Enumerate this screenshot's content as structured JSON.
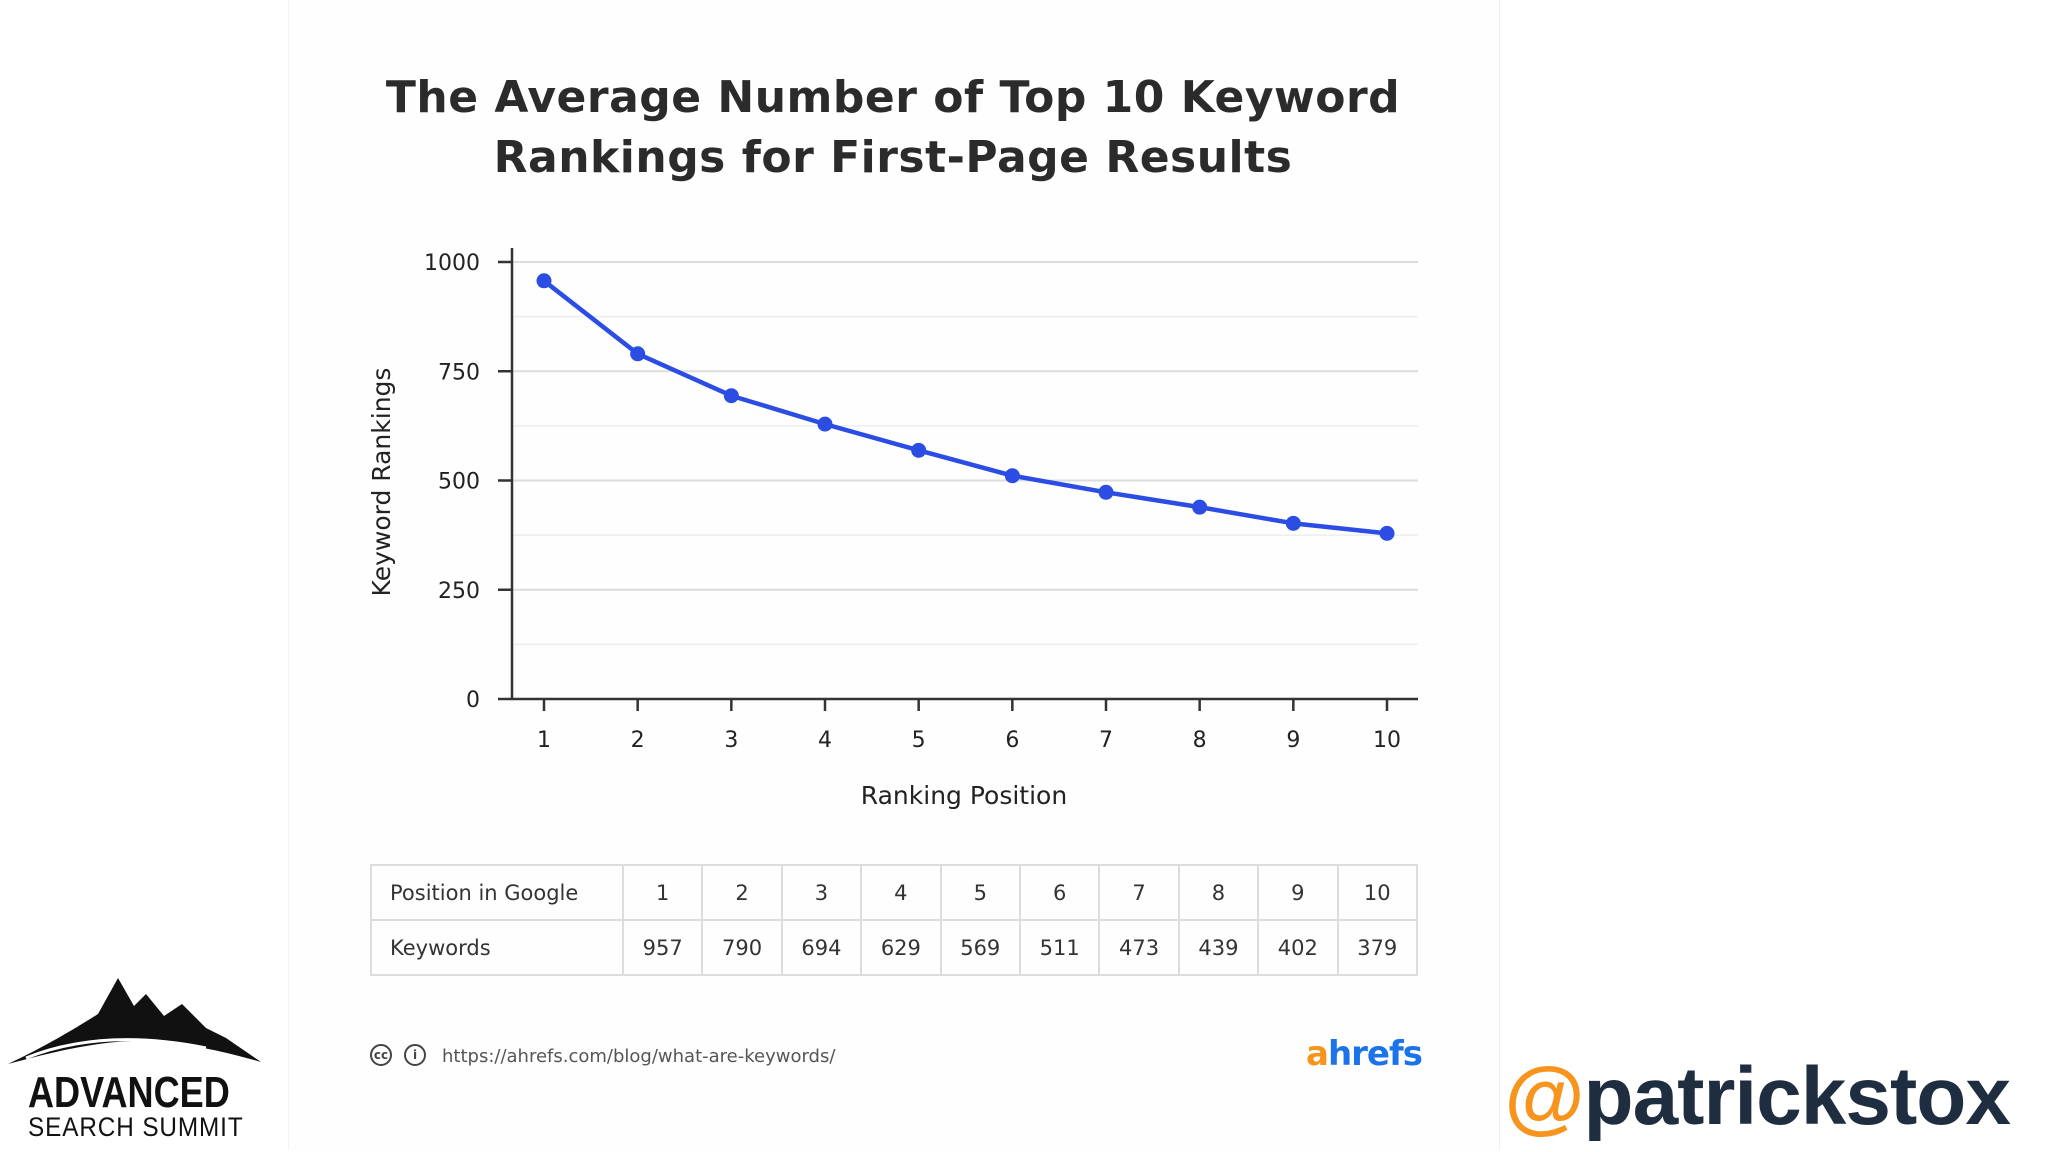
{
  "chart_data": {
    "type": "line",
    "title_lines": [
      "The Average Number of Top 10 Keyword",
      "Rankings for First-Page Results"
    ],
    "xlabel": "Ranking Position",
    "ylabel": "Keyword Rankings",
    "x": [
      1,
      2,
      3,
      4,
      5,
      6,
      7,
      8,
      9,
      10
    ],
    "values": [
      957,
      790,
      694,
      629,
      569,
      511,
      473,
      439,
      402,
      379
    ],
    "ylim": [
      0,
      1000
    ],
    "yticks": [
      0,
      250,
      500,
      750,
      1000
    ],
    "grid": true,
    "line_color": "#2b4de3"
  },
  "table": {
    "header_label": "Position in  Google",
    "positions": [
      "1",
      "2",
      "3",
      "4",
      "5",
      "6",
      "7",
      "8",
      "9",
      "10"
    ],
    "row_label": "Keywords",
    "keywords": [
      "957",
      "790",
      "694",
      "629",
      "569",
      "511",
      "473",
      "439",
      "402",
      "379"
    ]
  },
  "footer": {
    "cc_icon": "cc",
    "by_icon": "i",
    "url": "https://ahrefs.com/blog/what-are-keywords/",
    "brand_a": "a",
    "brand_rest": "hrefs"
  },
  "logo": {
    "line1": "ADVANCED",
    "line2": "SEARCH SUMMIT"
  },
  "handle": {
    "at": "@",
    "name": "patrickstox"
  }
}
